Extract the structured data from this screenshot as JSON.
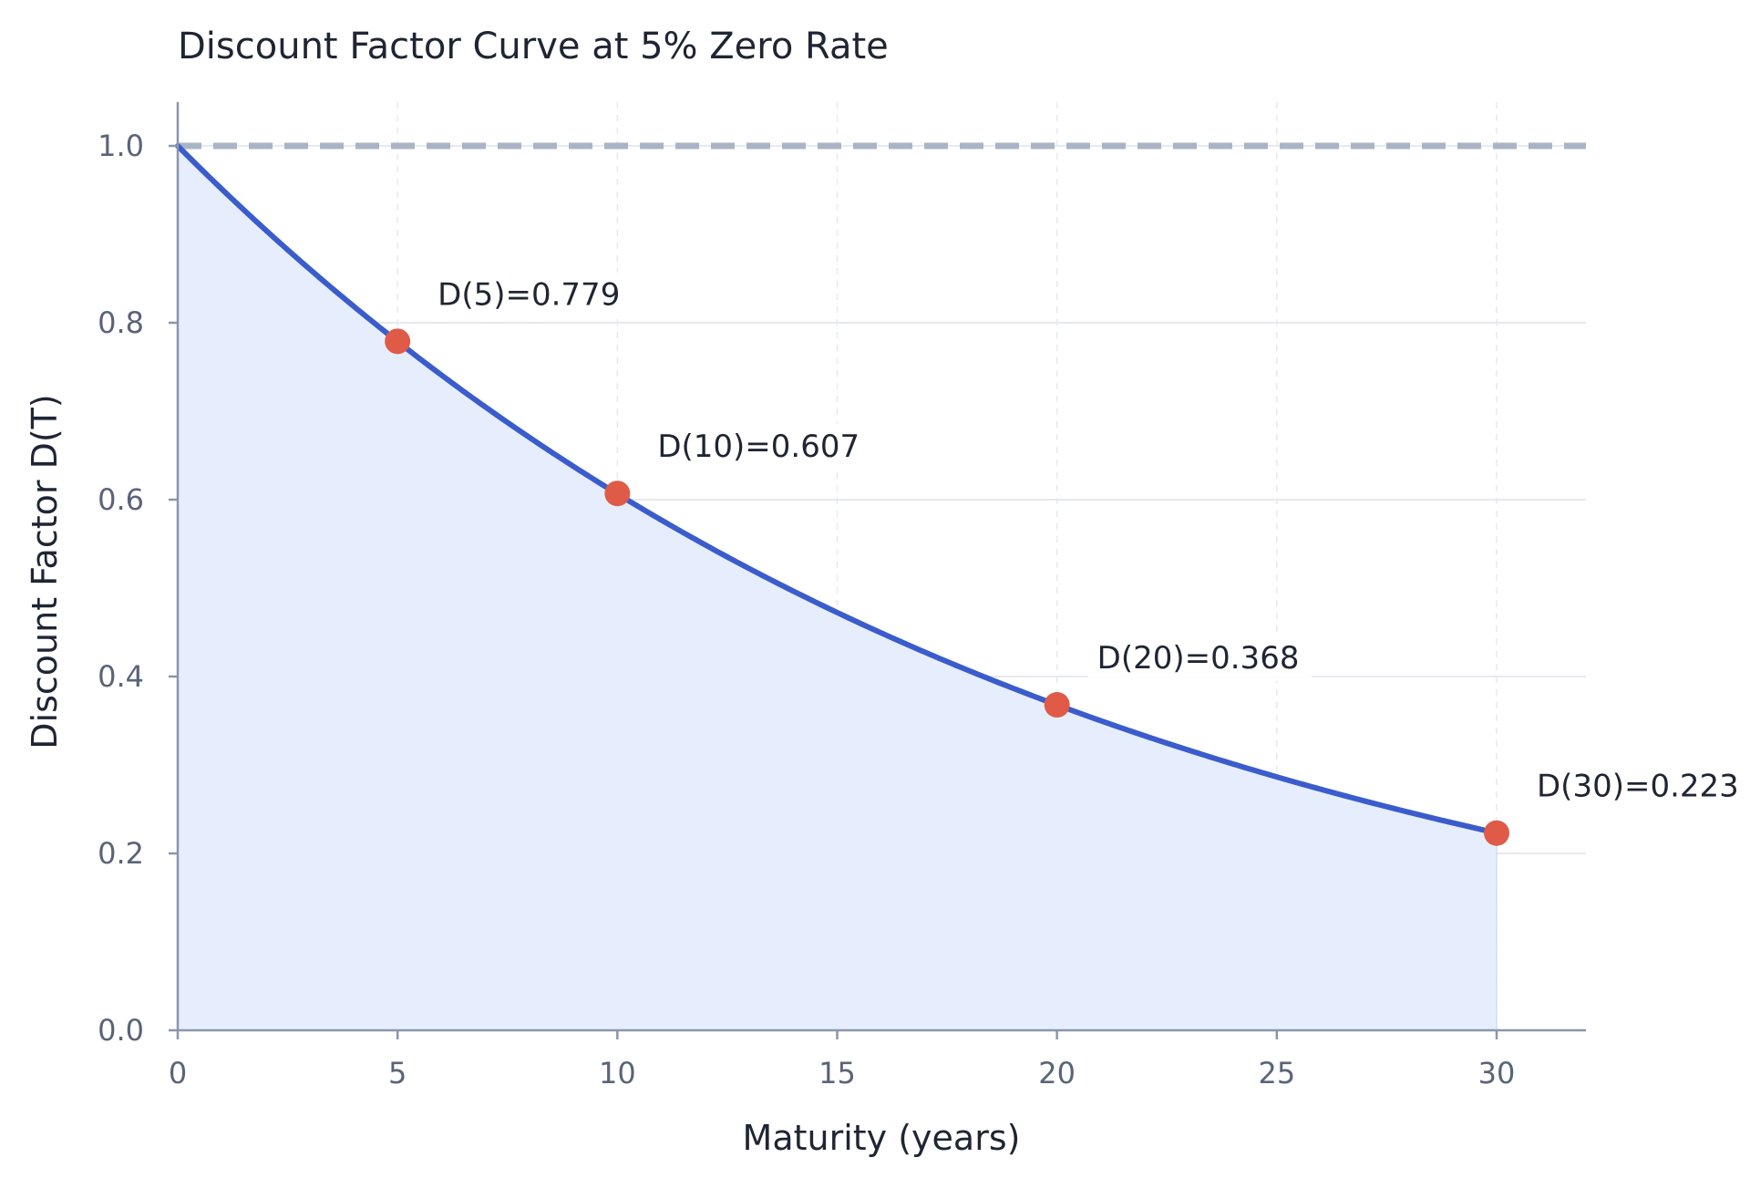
{
  "chart_data": {
    "type": "line",
    "title": "Discount Factor Curve at 5% Zero Rate",
    "xlabel": "Maturity (years)",
    "ylabel": "Discount Factor D(T)",
    "xlim": [
      0,
      32
    ],
    "ylim": [
      0,
      1.05
    ],
    "x_ticks": [
      "0",
      "5",
      "10",
      "15",
      "20",
      "25",
      "30"
    ],
    "y_ticks": [
      "0.0",
      "0.2",
      "0.4",
      "0.6",
      "0.8",
      "1.0"
    ],
    "grid": true,
    "zero_rate": 0.05,
    "series": [
      {
        "x": [
          0,
          2.5,
          5,
          7.5,
          10,
          12.5,
          15,
          17.5,
          20,
          22.5,
          25,
          27.5,
          30
        ],
        "values": [
          1.0,
          0.882,
          0.779,
          0.687,
          0.607,
          0.535,
          0.472,
          0.417,
          0.368,
          0.325,
          0.287,
          0.253,
          0.223
        ],
        "color": "#3a5ccc",
        "fill": "#e6eefd"
      }
    ],
    "reference_line": {
      "y": 1.0,
      "style": "dashed",
      "color": "#a9b4c6"
    },
    "highlighted_points": [
      {
        "x": 5,
        "y": 0.779,
        "label": "D(5)=0.779"
      },
      {
        "x": 10,
        "y": 0.607,
        "label": "D(10)=0.607"
      },
      {
        "x": 20,
        "y": 0.368,
        "label": "D(20)=0.368"
      },
      {
        "x": 30,
        "y": 0.223,
        "label": "D(30)=0.223"
      }
    ],
    "point_color": "#e05a48",
    "axis_color": "#8a96aa",
    "grid_color": "#e6e9ef"
  }
}
